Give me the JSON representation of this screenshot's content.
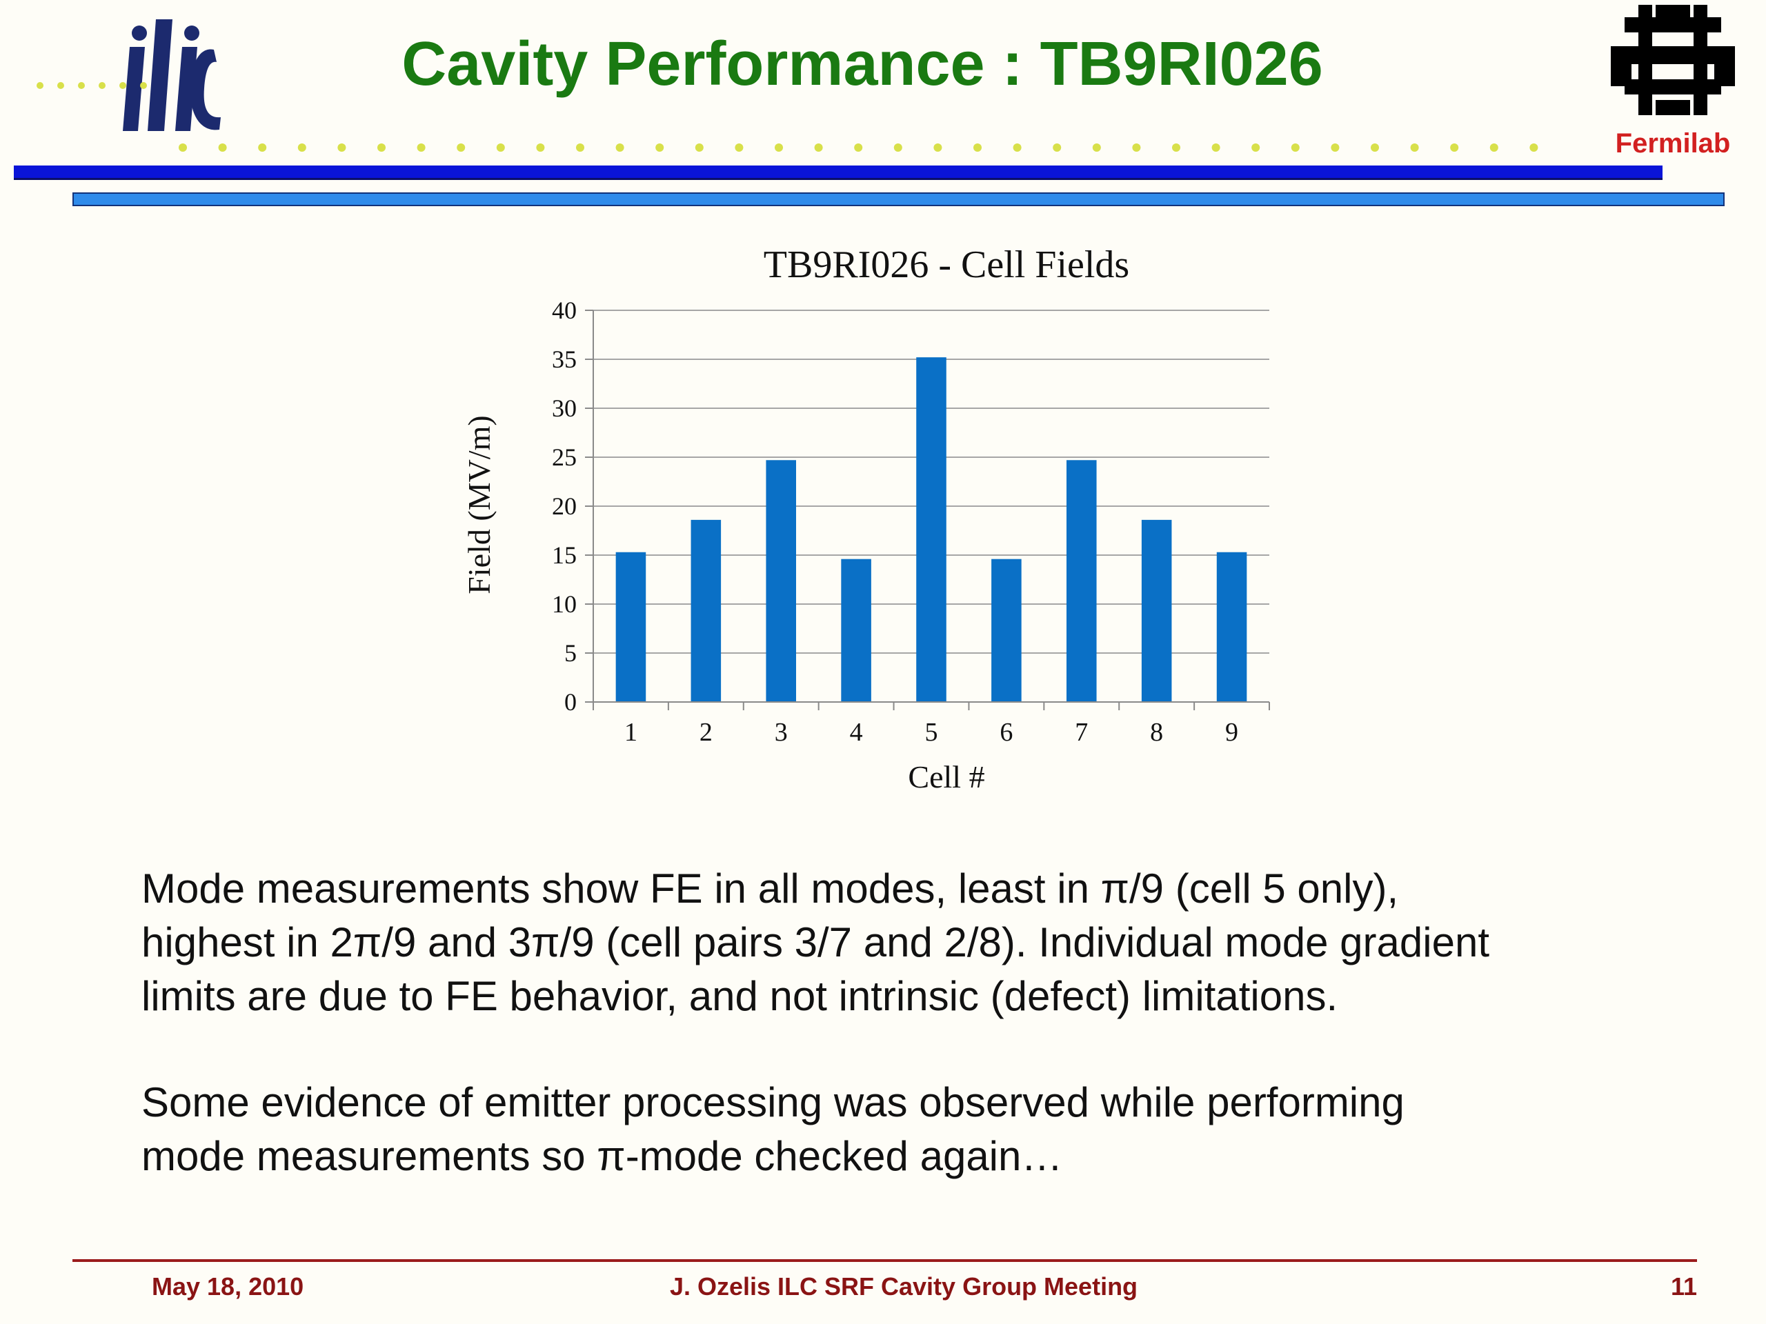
{
  "header": {
    "title": "Cavity Performance : TB9RI026",
    "logo_left": "ilc",
    "logo_right": "Fermilab"
  },
  "chart_data": {
    "type": "bar",
    "title": "TB9RI026 - Cell Fields",
    "xlabel": "Cell #",
    "ylabel": "Field (MV/m)",
    "categories": [
      "1",
      "2",
      "3",
      "4",
      "5",
      "6",
      "7",
      "8",
      "9"
    ],
    "values": [
      15.3,
      18.6,
      24.7,
      14.6,
      35.2,
      14.6,
      24.7,
      18.6,
      15.3
    ],
    "ylim": [
      0,
      40
    ],
    "yticks": [
      0,
      5,
      10,
      15,
      20,
      25,
      30,
      35,
      40
    ],
    "grid": true,
    "bar_color": "#0a70c6"
  },
  "body": {
    "para1_lines": [
      "Mode measurements show FE in all modes, least in π/9 (cell 5 only),",
      "highest in 2π/9 and 3π/9 (cell pairs 3/7 and 2/8). Individual mode gradient",
      "limits are due to FE behavior, and not intrinsic (defect) limitations."
    ],
    "para2_lines": [
      "Some evidence of emitter processing was observed while performing",
      "mode measurements so π-mode checked again…"
    ]
  },
  "footer": {
    "date": "May 18,  2010",
    "center": "J. Ozelis  ILC SRF Cavity Group Meeting",
    "page": "11"
  },
  "colors": {
    "title_green": "#1a7a12",
    "dot_yellow": "#d8e04a",
    "bar_dark_blue": "#0a14d8",
    "bar_light_blue": "#2f8bea",
    "footer_red": "#8a1414",
    "fermilab_red": "#d22020"
  }
}
